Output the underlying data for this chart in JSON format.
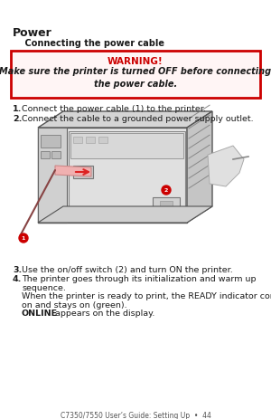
{
  "page_bg": "#ffffff",
  "title": "Power",
  "subtitle": "    Connecting the power cable",
  "warning_title": "WARNING!",
  "warning_title_color": "#cc0000",
  "warning_text": "Make sure the printer is turned OFF before connecting\nthe power cable.",
  "warning_bg": "#fff5f5",
  "warning_border": "#cc0000",
  "step1": "Connect the power cable (1) to the printer.",
  "step2": "Connect the cable to a grounded power supply outlet.",
  "step3": "Use the on/off switch (2) and turn ON the printer.",
  "step4a": "The printer goes through its initialization and warm up",
  "step4b": "sequence.",
  "step4c": "When the printer is ready to print, the READY indicator comes",
  "step4d": "on and stays on (green).",
  "step4e_bold": "ONLINE",
  "step4e_rest": " appears on the display.",
  "footer": "C7350/7550 User’s Guide: Setting Up  •  44",
  "font_color": "#1a1a1a",
  "label_color": "#cc0000"
}
